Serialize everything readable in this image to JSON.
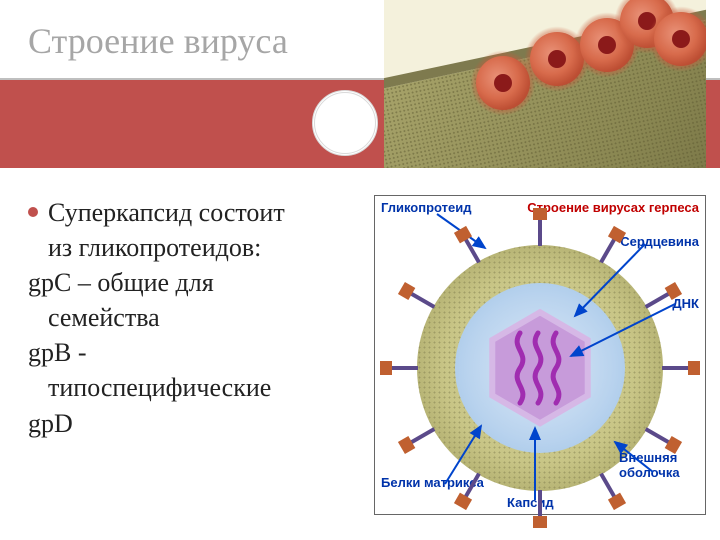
{
  "title": "Строение вируса",
  "micrograph": {
    "virion_count": 5,
    "virion_color_outer": "#e27656",
    "virion_color_core": "#8b1a1a",
    "cell_color": "#8a8752",
    "background": "#f4f1dc"
  },
  "bullet": {
    "line1": "Суперкапсид состоит",
    "line2": "из гликопротеидов:",
    "line3": "gpC – общие для",
    "line4": "семейства",
    "line5": "gpB -",
    "line6": "типоспецифические",
    "line7": "gpD"
  },
  "diagram": {
    "title": "Строение вирусах герпеса",
    "labels": {
      "glycoprotein": "Гликопротеид",
      "core": "Сердцевина",
      "dna": "ДНК",
      "outer_envelope": "Внешняя оболочка",
      "capsid": "Капсид",
      "matrix_proteins": "Белки матрикса"
    },
    "colors": {
      "envelope": "#b0ad6e",
      "tegument": "#b9d3ee",
      "capsid": "#c79bda",
      "dna": "#a02db0",
      "spike_stem": "#5b4a8a",
      "spike_head": "#c06030",
      "label_text": "#0033aa",
      "title_text": "#c00000",
      "arrow": "#0044cc"
    },
    "spike_count": 12
  },
  "accent_color": "#c0504d",
  "title_color": "#a6a6a6"
}
